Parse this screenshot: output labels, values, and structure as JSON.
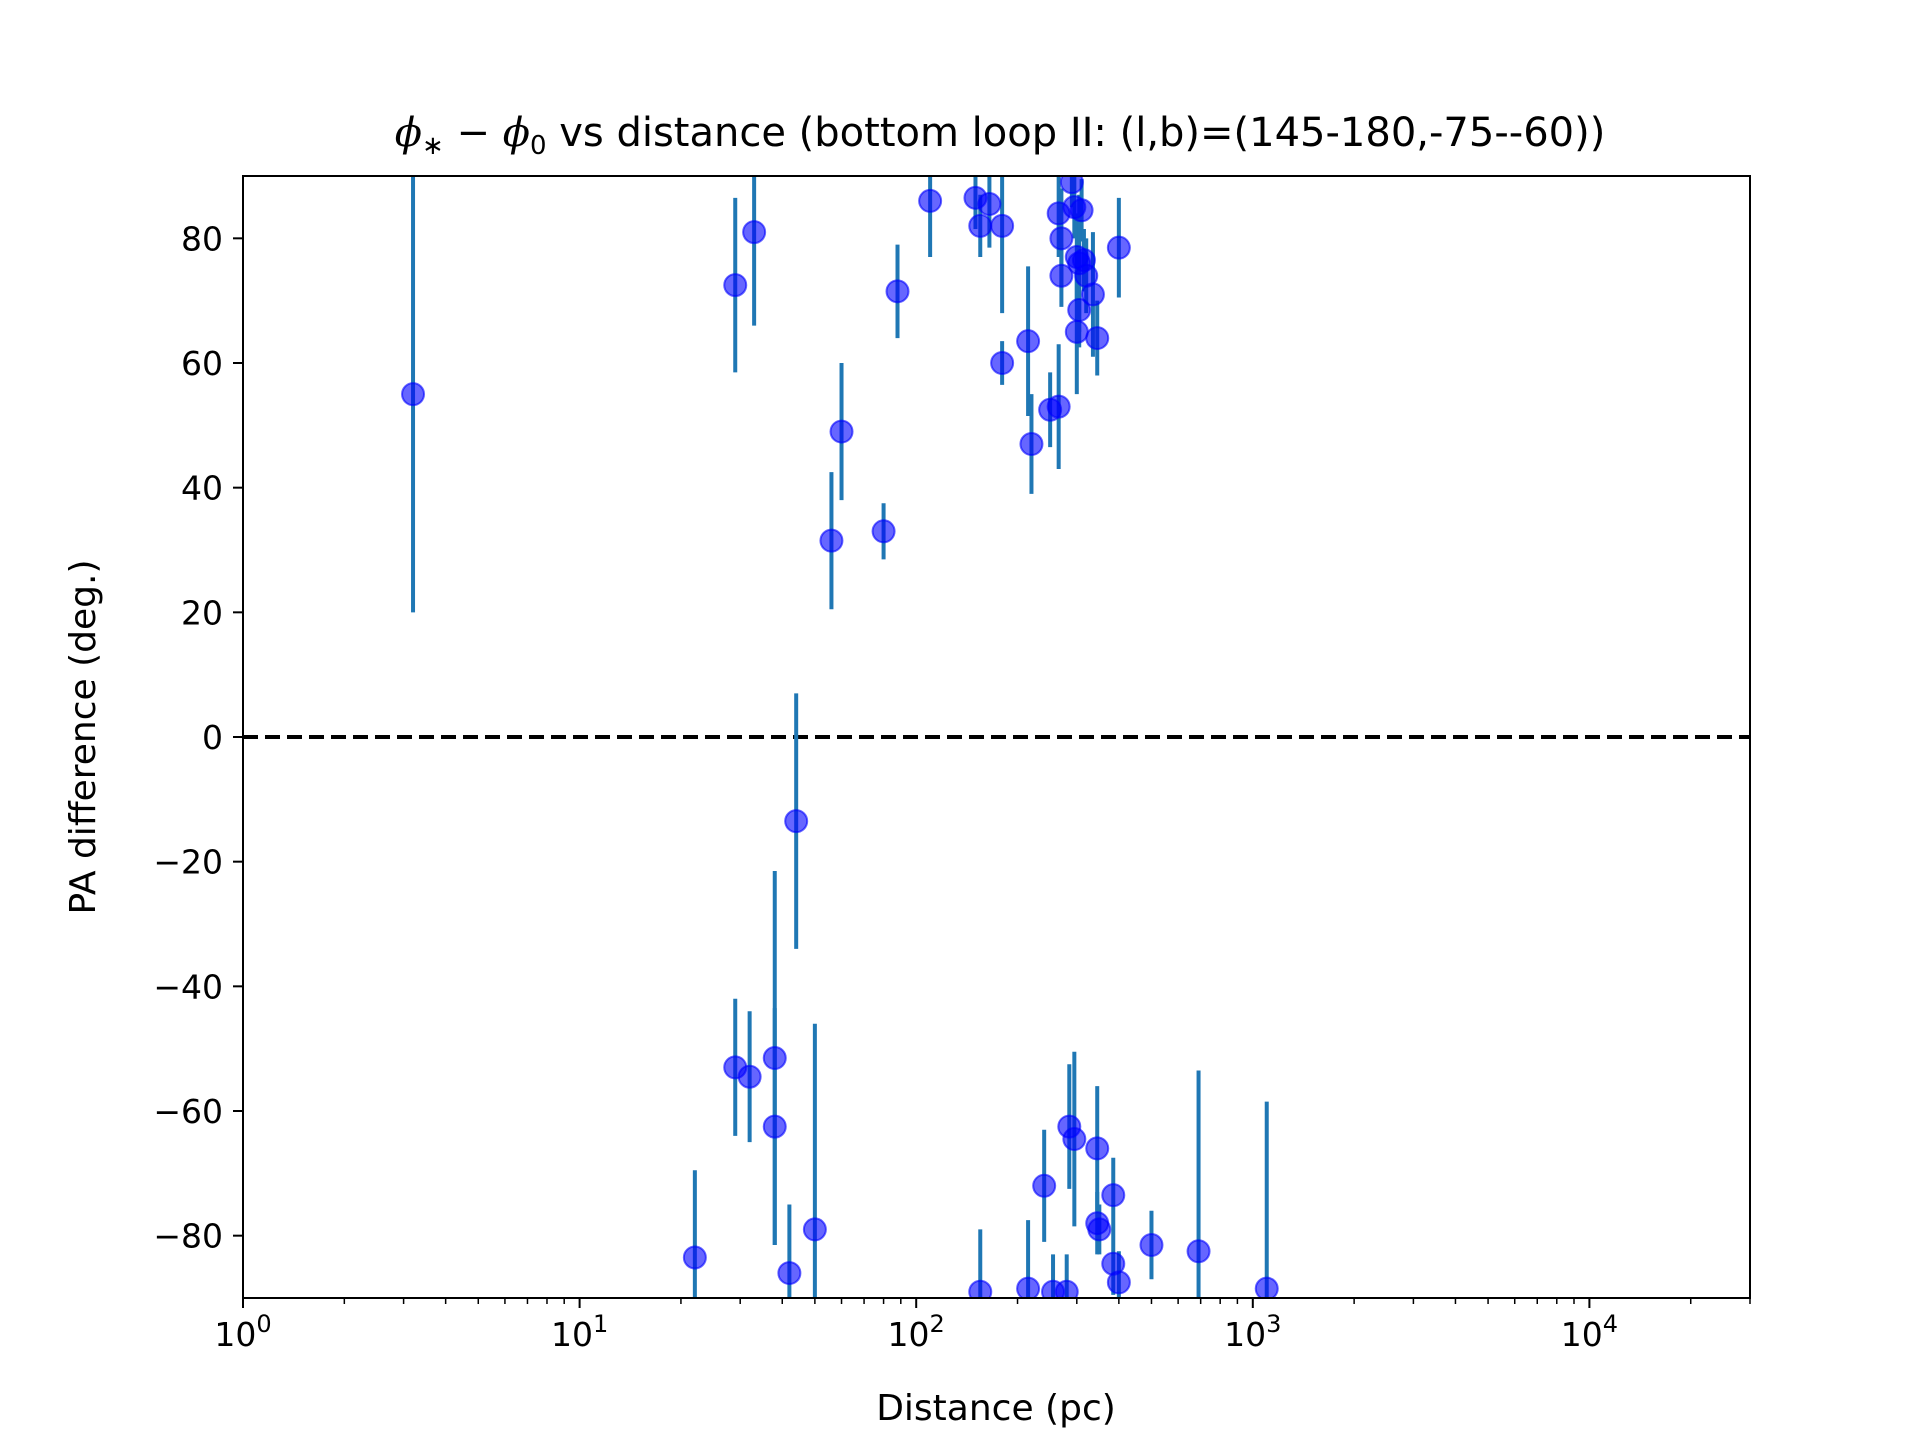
{
  "chart_data": {
    "type": "scatter",
    "title_prefix": {
      "phi": "ϕ",
      "star": "∗",
      "minus": " − ",
      "zero": "0"
    },
    "title": " vs distance (bottom loop II: (l,b)=(145-180,-75--60))",
    "xlabel": "Distance (pc)",
    "ylabel": "PA difference (deg.)",
    "xscale": "log",
    "xlim": [
      1,
      30000
    ],
    "ylim": [
      -90,
      90
    ],
    "xticks": [
      {
        "value": 1,
        "base": "10",
        "exp": "0"
      },
      {
        "value": 10,
        "base": "10",
        "exp": "1"
      },
      {
        "value": 100,
        "base": "10",
        "exp": "2"
      },
      {
        "value": 1000,
        "base": "10",
        "exp": "3"
      },
      {
        "value": 10000,
        "base": "10",
        "exp": "4"
      }
    ],
    "yticks": [
      {
        "value": 80,
        "label": "80"
      },
      {
        "value": 60,
        "label": "60"
      },
      {
        "value": 40,
        "label": "40"
      },
      {
        "value": 20,
        "label": "20"
      },
      {
        "value": 0,
        "label": "0"
      },
      {
        "value": -20,
        "label": "−20"
      },
      {
        "value": -40,
        "label": "−40"
      },
      {
        "value": -60,
        "label": "−60"
      },
      {
        "value": -80,
        "label": "−80"
      }
    ],
    "reference_line": {
      "y": 0,
      "style": "dashed",
      "color": "#000000"
    },
    "marker_color": "#0000ff",
    "errorbar_color": "#1f77b4",
    "points": [
      {
        "x": 3.2,
        "y": 55,
        "err": 35
      },
      {
        "x": 29,
        "y": 72.5,
        "err": 14
      },
      {
        "x": 33,
        "y": 81,
        "err": 15
      },
      {
        "x": 56,
        "y": 31.5,
        "err": 11
      },
      {
        "x": 60,
        "y": 49,
        "err": 11
      },
      {
        "x": 80,
        "y": 33,
        "err": 4.5
      },
      {
        "x": 88,
        "y": 71.5,
        "err": 7.5
      },
      {
        "x": 110,
        "y": 86,
        "err": 9
      },
      {
        "x": 150,
        "y": 86.5,
        "err": 5
      },
      {
        "x": 155,
        "y": 82,
        "err": 5
      },
      {
        "x": 165,
        "y": 85.5,
        "err": 7
      },
      {
        "x": 180,
        "y": 82,
        "err": 14
      },
      {
        "x": 180,
        "y": 60,
        "err": 3.5
      },
      {
        "x": 215,
        "y": 63.5,
        "err": 12
      },
      {
        "x": 220,
        "y": 47,
        "err": 8
      },
      {
        "x": 250,
        "y": 52.5,
        "err": 6
      },
      {
        "x": 265,
        "y": 53,
        "err": 10
      },
      {
        "x": 265,
        "y": 84,
        "err": 7
      },
      {
        "x": 270,
        "y": 80,
        "err": 8
      },
      {
        "x": 270,
        "y": 74,
        "err": 5
      },
      {
        "x": 290,
        "y": 89,
        "err": 4
      },
      {
        "x": 295,
        "y": 85,
        "err": 5
      },
      {
        "x": 300,
        "y": 77,
        "err": 7
      },
      {
        "x": 305,
        "y": 76,
        "err": 11
      },
      {
        "x": 305,
        "y": 68.5,
        "err": 6
      },
      {
        "x": 300,
        "y": 65,
        "err": 10
      },
      {
        "x": 310,
        "y": 84.5,
        "err": 5
      },
      {
        "x": 315,
        "y": 76.5,
        "err": 5
      },
      {
        "x": 320,
        "y": 74,
        "err": 6
      },
      {
        "x": 335,
        "y": 71,
        "err": 10
      },
      {
        "x": 345,
        "y": 64,
        "err": 6
      },
      {
        "x": 400,
        "y": 78.5,
        "err": 8
      },
      {
        "x": 44,
        "y": -13.5,
        "err": 20.5
      },
      {
        "x": 22,
        "y": -83.5,
        "err": 14
      },
      {
        "x": 29,
        "y": -53,
        "err": 11
      },
      {
        "x": 32,
        "y": -54.5,
        "err": 10.5
      },
      {
        "x": 38,
        "y": -51.5,
        "err": 30
      },
      {
        "x": 38,
        "y": -62.5,
        "err": 19
      },
      {
        "x": 42,
        "y": -86,
        "err": 11
      },
      {
        "x": 50,
        "y": -79,
        "err": 33
      },
      {
        "x": 155,
        "y": -89,
        "err": 10
      },
      {
        "x": 215,
        "y": -88.5,
        "err": 11
      },
      {
        "x": 240,
        "y": -72,
        "err": 9
      },
      {
        "x": 255,
        "y": -89,
        "err": 6
      },
      {
        "x": 280,
        "y": -89,
        "err": 6
      },
      {
        "x": 285,
        "y": -62.5,
        "err": 10
      },
      {
        "x": 295,
        "y": -64.5,
        "err": 14
      },
      {
        "x": 345,
        "y": -66,
        "err": 10
      },
      {
        "x": 345,
        "y": -78,
        "err": 5
      },
      {
        "x": 350,
        "y": -79,
        "err": 4
      },
      {
        "x": 385,
        "y": -73.5,
        "err": 6
      },
      {
        "x": 385,
        "y": -84.5,
        "err": 5
      },
      {
        "x": 400,
        "y": -87.5,
        "err": 5
      },
      {
        "x": 500,
        "y": -81.5,
        "err": 5.5
      },
      {
        "x": 690,
        "y": -82.5,
        "err": 29
      },
      {
        "x": 1100,
        "y": -88.5,
        "err": 30
      }
    ]
  }
}
